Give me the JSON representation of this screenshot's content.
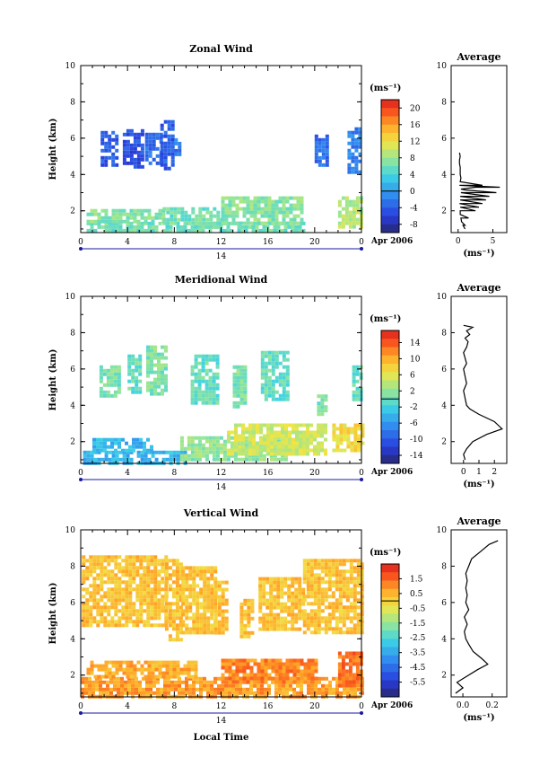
{
  "figure": {
    "panels": [
      {
        "title": "Zonal Wind",
        "unit": "(ms⁻¹)",
        "colorbar_ticks": [
          "20",
          "16",
          "12",
          "8",
          "4",
          "0",
          "-4",
          "-8"
        ],
        "colorbar_range": [
          -10,
          22
        ],
        "avg_title": "Average",
        "avg_xticks": [
          "0",
          "5"
        ],
        "avg_xlabel": "(ms⁻¹)"
      },
      {
        "title": "Meridional Wind",
        "unit": "(ms⁻¹)",
        "colorbar_ticks": [
          "14",
          "10",
          "6",
          "2",
          "-2",
          "-6",
          "-10",
          "-14"
        ],
        "colorbar_range": [
          -16,
          17
        ],
        "avg_title": "Average",
        "avg_xticks": [
          "0",
          "1",
          "2"
        ],
        "avg_xlabel": "(ms⁻¹)"
      },
      {
        "title": "Vertical Wind",
        "unit": "(ms⁻¹)",
        "colorbar_ticks": [
          "1.5",
          "0.5",
          "-0.5",
          "-1.5",
          "-2.5",
          "-3.5",
          "-4.5",
          "-5.5"
        ],
        "colorbar_range": [
          -6.5,
          2.5
        ],
        "avg_title": "Average",
        "avg_xticks": [
          "0.0",
          "0.2"
        ],
        "avg_xlabel": "(ms⁻¹)"
      }
    ],
    "shared": {
      "ylabel": "Height (km)",
      "x_ticks": [
        "0",
        "4",
        "8",
        "12",
        "16",
        "20",
        "0"
      ],
      "y_ticks": [
        "10",
        "8",
        "6",
        "4",
        "2"
      ],
      "date_day": "14",
      "date_label": "Apr 2006",
      "xlabel": "Local Time"
    }
  },
  "chart_data": [
    {
      "type": "heatmap",
      "title": "Zonal Wind",
      "xlabel": "Local Time",
      "ylabel": "Height (km)",
      "xlim": [
        0,
        24
      ],
      "ylim": [
        0.8,
        10
      ],
      "color_range": [
        -10,
        22
      ],
      "colorbar_label": "(ms⁻¹)",
      "regions": [
        {
          "x": [
            0.5,
            19.0
          ],
          "y": [
            0.9,
            1.4
          ],
          "value": 6
        },
        {
          "x": [
            0.5,
            7.0
          ],
          "y": [
            1.4,
            2.1
          ],
          "value": 7
        },
        {
          "x": [
            7.0,
            12.0
          ],
          "y": [
            1.4,
            2.2
          ],
          "value": 6
        },
        {
          "x": [
            12.0,
            18.8
          ],
          "y": [
            1.4,
            2.8
          ],
          "value": 7
        },
        {
          "x": [
            22.0,
            24.0
          ],
          "y": [
            1.1,
            2.8
          ],
          "value": 9
        },
        {
          "x": [
            1.7,
            3.0
          ],
          "y": [
            4.6,
            6.4
          ],
          "value": -4
        },
        {
          "x": [
            3.6,
            5.2
          ],
          "y": [
            4.5,
            6.5
          ],
          "value": -5
        },
        {
          "x": [
            5.5,
            6.8
          ],
          "y": [
            4.6,
            6.3
          ],
          "value": -3
        },
        {
          "x": [
            6.8,
            7.8
          ],
          "y": [
            4.4,
            7.0
          ],
          "value": -4
        },
        {
          "x": [
            8.0,
            8.6
          ],
          "y": [
            5.2,
            6.0
          ],
          "value": -2
        },
        {
          "x": [
            20.0,
            21.2
          ],
          "y": [
            4.6,
            6.2
          ],
          "value": -3
        },
        {
          "x": [
            22.8,
            24.0
          ],
          "y": [
            4.1,
            6.6
          ],
          "value": -2
        }
      ],
      "average_profile": {
        "xlim": [
          -1,
          7
        ],
        "x": [
          1.0,
          0.7,
          0.5,
          0.4,
          0.3,
          0.3,
          0.3,
          0.2,
          0.3,
          0.3,
          0.4,
          0.4,
          0.2,
          0.3,
          0.4,
          0.3,
          0.3,
          0.3,
          0.2,
          0.2,
          0.3,
          0.2,
          1.0,
          0.5,
          2.5,
          3.5,
          6.0,
          5.5,
          4.5,
          4.0,
          3.5,
          3.0,
          2.5,
          1.5,
          1.0
        ],
        "y": [
          1.0,
          1.2,
          1.4,
          1.6,
          1.8,
          2.0,
          2.2,
          2.4,
          2.6,
          2.8,
          3.0,
          3.2,
          3.4,
          3.6,
          3.8,
          4.0,
          4.2,
          4.4,
          4.6,
          4.8,
          5.0,
          5.2,
          3.15,
          3.2,
          3.3,
          3.4,
          3.3,
          3.0,
          2.8,
          2.6,
          2.4,
          2.2,
          2.0,
          1.6,
          1.2
        ]
      }
    },
    {
      "type": "heatmap",
      "title": "Meridional Wind",
      "xlabel": "Local Time",
      "ylabel": "Height (km)",
      "xlim": [
        0,
        24
      ],
      "ylim": [
        0.8,
        10
      ],
      "color_range": [
        -16,
        17
      ],
      "colorbar_label": "(ms⁻¹)",
      "regions": [
        {
          "x": [
            0.2,
            9.0
          ],
          "y": [
            0.9,
            1.5
          ],
          "value": -4
        },
        {
          "x": [
            1.0,
            6.0
          ],
          "y": [
            1.5,
            2.2
          ],
          "value": -4
        },
        {
          "x": [
            8.5,
            17.5
          ],
          "y": [
            1.0,
            2.3
          ],
          "value": 2
        },
        {
          "x": [
            12.5,
            21.0
          ],
          "y": [
            1.4,
            3.0
          ],
          "value": 5
        },
        {
          "x": [
            21.5,
            24.0
          ],
          "y": [
            1.5,
            3.0
          ],
          "value": 7
        },
        {
          "x": [
            1.6,
            3.2
          ],
          "y": [
            4.6,
            6.2
          ],
          "value": 1
        },
        {
          "x": [
            4.0,
            5.0
          ],
          "y": [
            4.8,
            6.8
          ],
          "value": 0
        },
        {
          "x": [
            5.6,
            7.4
          ],
          "y": [
            4.6,
            7.3
          ],
          "value": 1
        },
        {
          "x": [
            9.4,
            11.8
          ],
          "y": [
            4.2,
            6.8
          ],
          "value": 0
        },
        {
          "x": [
            13.0,
            14.0
          ],
          "y": [
            4.0,
            6.2
          ],
          "value": 1
        },
        {
          "x": [
            15.4,
            17.8
          ],
          "y": [
            4.4,
            7.0
          ],
          "value": 0
        },
        {
          "x": [
            20.2,
            21.0
          ],
          "y": [
            3.6,
            4.6
          ],
          "value": 1
        },
        {
          "x": [
            23.2,
            24.0
          ],
          "y": [
            4.4,
            6.2
          ],
          "value": 0
        }
      ],
      "average_profile": {
        "xlim": [
          -0.8,
          2.8
        ],
        "x": [
          0.1,
          0.0,
          0.2,
          0.6,
          1.5,
          2.5,
          2.0,
          1.0,
          0.4,
          0.2,
          0.1,
          0.0,
          0.2,
          0.1,
          0.0,
          0.2,
          0.1,
          0.0,
          0.2,
          0.3,
          0.1,
          0.4,
          0.2,
          0.6,
          0.0
        ],
        "y": [
          1.0,
          1.3,
          1.6,
          2.0,
          2.4,
          2.7,
          3.1,
          3.5,
          3.8,
          4.0,
          4.4,
          4.8,
          5.2,
          5.6,
          6.0,
          6.3,
          6.6,
          6.9,
          7.2,
          7.5,
          7.7,
          7.9,
          8.1,
          8.3,
          8.4
        ]
      }
    },
    {
      "type": "heatmap",
      "title": "Vertical Wind",
      "xlabel": "Local Time",
      "ylabel": "Height (km)",
      "xlim": [
        0,
        24
      ],
      "ylim": [
        0.8,
        10
      ],
      "color_range": [
        -6.5,
        2.5
      ],
      "colorbar_label": "(ms⁻¹)",
      "regions": [
        {
          "x": [
            0.1,
            7.2
          ],
          "y": [
            4.8,
            8.6
          ],
          "value": 0.3
        },
        {
          "x": [
            7.2,
            8.6
          ],
          "y": [
            4.0,
            8.4
          ],
          "value": 0.3
        },
        {
          "x": [
            8.6,
            11.4
          ],
          "y": [
            4.4,
            8.0
          ],
          "value": 0.3
        },
        {
          "x": [
            11.4,
            12.6
          ],
          "y": [
            4.4,
            7.2
          ],
          "value": 0.3
        },
        {
          "x": [
            13.6,
            14.8
          ],
          "y": [
            4.2,
            6.2
          ],
          "value": 0.3
        },
        {
          "x": [
            15.2,
            19.0
          ],
          "y": [
            4.6,
            7.4
          ],
          "value": 0.3
        },
        {
          "x": [
            19.0,
            24.0
          ],
          "y": [
            4.4,
            8.4
          ],
          "value": 0.3
        },
        {
          "x": [
            0.0,
            24.0
          ],
          "y": [
            0.9,
            1.9
          ],
          "value": 0.8
        },
        {
          "x": [
            0.5,
            10.0
          ],
          "y": [
            1.9,
            2.8
          ],
          "value": 0.6
        },
        {
          "x": [
            12.0,
            20.0
          ],
          "y": [
            1.6,
            2.9
          ],
          "value": 1.1
        },
        {
          "x": [
            22.0,
            24.0
          ],
          "y": [
            1.4,
            3.3
          ],
          "value": 1.4
        }
      ],
      "average_profile": {
        "xlim": [
          -0.08,
          0.3
        ],
        "x": [
          -0.05,
          0.0,
          -0.04,
          0.02,
          0.1,
          0.17,
          0.13,
          0.07,
          0.04,
          0.02,
          0.01,
          0.03,
          0.01,
          0.04,
          0.02,
          0.03,
          0.02,
          0.03,
          0.02,
          0.04,
          0.06,
          0.12,
          0.18,
          0.24
        ],
        "y": [
          1.0,
          1.3,
          1.6,
          1.9,
          2.3,
          2.6,
          2.9,
          3.3,
          3.7,
          4.0,
          4.4,
          4.8,
          5.2,
          5.6,
          6.0,
          6.4,
          6.8,
          7.2,
          7.6,
          8.0,
          8.4,
          8.8,
          9.2,
          9.4
        ]
      }
    }
  ]
}
